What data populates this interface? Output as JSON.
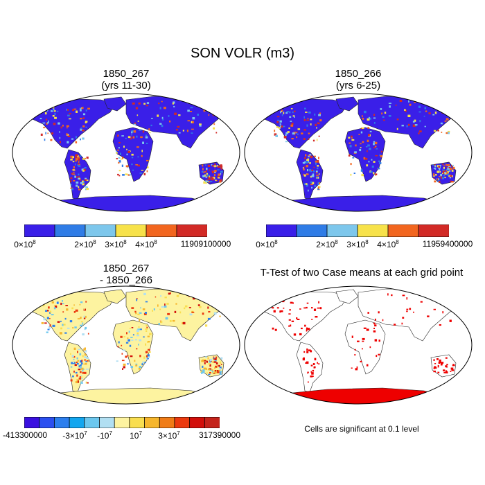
{
  "figure": {
    "title": "SON VOLR (m3)"
  },
  "panels": [
    {
      "id": "panel-1850_267",
      "title_line1": "1850_267",
      "title_line2": "(yrs 11-30)",
      "colorbar": {
        "colors": [
          "#3a1fe8",
          "#2f7ce6",
          "#7dc7ec",
          "#f7e24a",
          "#f2661f",
          "#d22a26"
        ],
        "labels": [
          "0×10^8",
          "2×10^8",
          "3×10^8",
          "4×10^8",
          "11909100000"
        ]
      }
    },
    {
      "id": "panel-1850_266",
      "title_line1": "1850_266",
      "title_line2": "(yrs 6-25)",
      "colorbar": {
        "colors": [
          "#3a1fe8",
          "#2f7ce6",
          "#7dc7ec",
          "#f7e24a",
          "#f2661f",
          "#d22a26"
        ],
        "labels": [
          "0×10^8",
          "2×10^8",
          "3×10^8",
          "4×10^8",
          "11959400000"
        ]
      }
    },
    {
      "id": "panel-diff",
      "title_line1": "1850_267",
      "title_line2": "- 1850_266",
      "colorbar": {
        "colors": [
          "#3a10e0",
          "#2b4ff0",
          "#2c7fee",
          "#13a6ef",
          "#6cc7ee",
          "#b1dff2",
          "#fdf3a0",
          "#f9de50",
          "#f6b62c",
          "#f07c17",
          "#eb3a0f",
          "#d20f0a",
          "#c4231b"
        ],
        "labels": [
          "-413300000",
          "-3×10^7",
          "-10^7",
          "10^7",
          "3×10^7",
          "317390000"
        ]
      }
    },
    {
      "id": "panel-ttest",
      "title_line1": "T-Test of two Case means at each grid point",
      "note": "Cells are significant at 0.1 level",
      "significant_color": "#ee0000"
    }
  ]
}
